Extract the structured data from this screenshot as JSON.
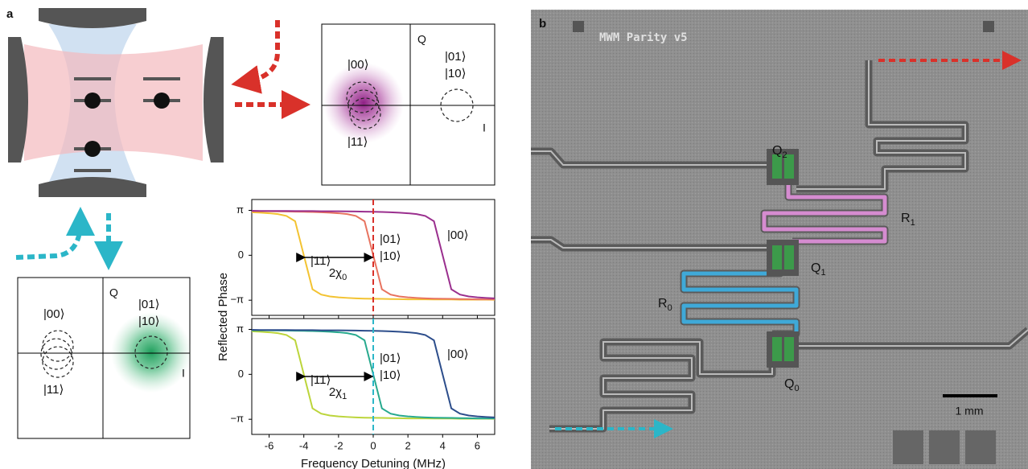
{
  "panel_a": {
    "label": "a",
    "iq_top": {
      "q": "Q",
      "i": "I",
      "s00": "|00⟩",
      "s0110": "|01⟩ |10⟩",
      "s11": "|11⟩"
    },
    "iq_bottom": {
      "q": "Q",
      "i": "I",
      "s00": "|00⟩",
      "s0110": "|01⟩ |10⟩",
      "s11": "|11⟩"
    }
  },
  "panel_b": {
    "label": "b",
    "chip_title": "MWM Parity v5",
    "scale_bar": "1 mm",
    "q2": {
      "text": "Q",
      "sub": "2"
    },
    "r1": {
      "text": "R",
      "sub": "1"
    },
    "q1": {
      "text": "Q",
      "sub": "1"
    },
    "r0": {
      "text": "R",
      "sub": "0"
    },
    "q0": {
      "text": "Q",
      "sub": "0"
    }
  },
  "chart_data": [
    {
      "type": "line",
      "ylabel": "Reflected Phase",
      "x": [
        -7,
        -6.5,
        -6,
        -5.5,
        -5,
        -4.5,
        -4,
        -3.5,
        -3,
        -2.5,
        -2,
        -1.5,
        -1,
        -0.5,
        0,
        0.5,
        1,
        1.5,
        2,
        2.5,
        3,
        3.5,
        4,
        4.5,
        5,
        5.5,
        6,
        6.5,
        7
      ],
      "series": [
        {
          "name": "|11⟩",
          "color": "#f3c332",
          "values": [
            3.01,
            2.98,
            2.94,
            2.88,
            2.75,
            2.38,
            0,
            -2.38,
            -2.75,
            -2.88,
            -2.94,
            -2.98,
            -3.01,
            -3.03,
            -3.04,
            -3.05,
            -3.06,
            -3.07,
            -3.08,
            -3.08,
            -3.08,
            -3.09,
            -3.09,
            -3.09,
            -3.1,
            -3.1,
            -3.1,
            -3.1,
            -3.11
          ]
        },
        {
          "name": "|01⟩ |10⟩",
          "color": "#e8735f",
          "values": [
            3.08,
            3.08,
            3.08,
            3.07,
            3.06,
            3.05,
            3.04,
            3.03,
            3.01,
            2.98,
            2.94,
            2.88,
            2.75,
            2.38,
            0,
            -2.38,
            -2.75,
            -2.88,
            -2.94,
            -2.98,
            -3.01,
            -3.03,
            -3.04,
            -3.05,
            -3.06,
            -3.07,
            -3.08,
            -3.08,
            -3.08
          ]
        },
        {
          "name": "|00⟩",
          "color": "#9a2f8e",
          "values": [
            3.11,
            3.1,
            3.1,
            3.1,
            3.1,
            3.09,
            3.09,
            3.09,
            3.08,
            3.08,
            3.08,
            3.07,
            3.06,
            3.05,
            3.04,
            3.03,
            3.01,
            2.98,
            2.94,
            2.88,
            2.75,
            2.38,
            0,
            -2.38,
            -2.75,
            -2.88,
            -2.94,
            -2.98,
            -3.01
          ]
        }
      ],
      "xlim": [
        -7,
        7
      ],
      "ylim": [
        -4.2,
        3.9
      ],
      "xticks": [
        -6,
        -4,
        -2,
        0,
        2,
        4,
        6
      ],
      "yticks": [
        {
          "value": 3.1416,
          "label": "π"
        },
        0,
        {
          "value": -3.1416,
          "label": "−π"
        }
      ],
      "vline": 0,
      "vline_color": "#d9312a",
      "arrow": [
        -4,
        0
      ],
      "annotation": {
        "text": "2χ",
        "sub": "0"
      }
    },
    {
      "type": "line",
      "xlabel": "Frequency Detuning (MHz)",
      "x": [
        -7,
        -6.5,
        -6,
        -5.5,
        -5,
        -4.5,
        -4,
        -3.5,
        -3,
        -2.5,
        -2,
        -1.5,
        -1,
        -0.5,
        0,
        0.5,
        1,
        1.5,
        2,
        2.5,
        3,
        3.5,
        4,
        4.5,
        5,
        5.5,
        6,
        6.5,
        7
      ],
      "series": [
        {
          "name": "|11⟩",
          "color": "#bcd53b",
          "values": [
            3.01,
            2.98,
            2.94,
            2.88,
            2.75,
            2.38,
            0,
            -2.38,
            -2.75,
            -2.88,
            -2.94,
            -2.98,
            -3.01,
            -3.03,
            -3.04,
            -3.05,
            -3.06,
            -3.07,
            -3.08,
            -3.08,
            -3.08,
            -3.09,
            -3.09,
            -3.09,
            -3.1,
            -3.1,
            -3.1,
            -3.1,
            -3.11
          ]
        },
        {
          "name": "|01⟩ |10⟩",
          "color": "#27a98e",
          "values": [
            3.08,
            3.08,
            3.08,
            3.07,
            3.06,
            3.05,
            3.04,
            3.03,
            3.01,
            2.98,
            2.94,
            2.88,
            2.75,
            2.38,
            0,
            -2.38,
            -2.75,
            -2.88,
            -2.94,
            -2.98,
            -3.01,
            -3.03,
            -3.04,
            -3.05,
            -3.06,
            -3.07,
            -3.08,
            -3.08,
            -3.08
          ]
        },
        {
          "name": "|00⟩",
          "color": "#2c4d8b",
          "values": [
            3.11,
            3.1,
            3.1,
            3.1,
            3.1,
            3.09,
            3.09,
            3.09,
            3.08,
            3.08,
            3.08,
            3.07,
            3.06,
            3.05,
            3.04,
            3.03,
            3.01,
            2.98,
            2.94,
            2.88,
            2.75,
            2.38,
            0,
            -2.38,
            -2.75,
            -2.88,
            -2.94,
            -2.98,
            -3.01
          ]
        }
      ],
      "xlim": [
        -7,
        7
      ],
      "ylim": [
        -4.2,
        3.9
      ],
      "xticks": [
        -6,
        -4,
        -2,
        0,
        2,
        4,
        6
      ],
      "yticks": [
        {
          "value": 3.1416,
          "label": "π"
        },
        0,
        {
          "value": -3.1416,
          "label": "−π"
        }
      ],
      "vline": 0,
      "vline_color": "#2bb6c8",
      "arrow": [
        -4,
        0
      ],
      "annotation": {
        "text": "2χ",
        "sub": "1"
      }
    }
  ]
}
